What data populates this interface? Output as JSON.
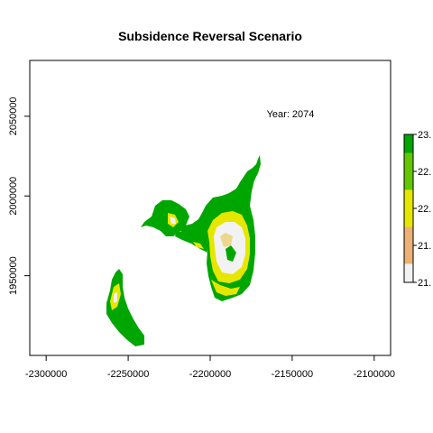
{
  "title": "Subsidence Reversal Scenario",
  "annotation": "Year: 2074",
  "x_axis": {
    "ticks": [
      -2300000,
      -2250000,
      -2200000,
      -2150000,
      -2100000
    ],
    "tick_labels": [
      "-2300000",
      "-2250000",
      "-2200000",
      "-2150000",
      "-2100000"
    ],
    "range": [
      -2310000,
      -2090000
    ]
  },
  "y_axis": {
    "ticks": [
      1950000,
      2000000,
      2050000
    ],
    "tick_labels": [
      "1950000",
      "2000000",
      "2050000"
    ],
    "range": [
      1900000,
      2085000
    ]
  },
  "legend": {
    "tick_labels": [
      "23.",
      "22.",
      "22.",
      "21.",
      "21."
    ],
    "colors": [
      "#00a600",
      "#63c600",
      "#e6e600",
      "#ecb176",
      "#f2f2f2"
    ]
  },
  "colors": {
    "high": "#00a600",
    "mid_high": "#3cb800",
    "mid": "#e6e600",
    "mid_low": "#ecd78c",
    "low": "#f2f2f2"
  }
}
